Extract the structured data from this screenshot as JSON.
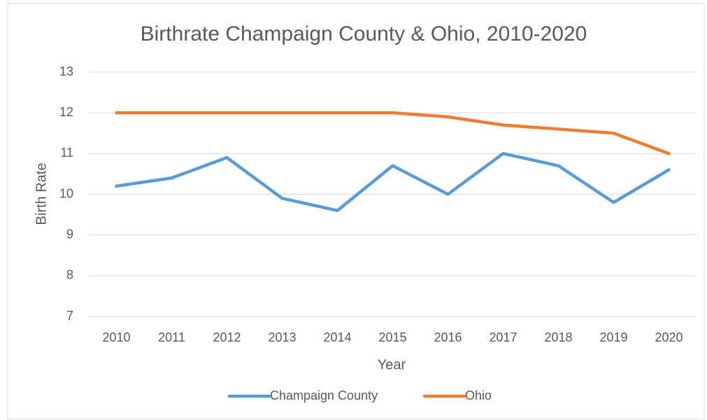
{
  "chart_data": {
    "type": "line",
    "title": "Birthrate Champaign County & Ohio, 2010-2020",
    "x_label": "Year",
    "y_label": "Birth Rate",
    "categories": [
      "2010",
      "2011",
      "2012",
      "2013",
      "2014",
      "2015",
      "2016",
      "2017",
      "2018",
      "2019",
      "2020"
    ],
    "series": [
      {
        "name": "Champaign County",
        "color": "#5b9bd5",
        "values": [
          10.2,
          10.4,
          10.9,
          9.9,
          9.6,
          10.7,
          10.0,
          11.0,
          10.7,
          9.8,
          10.6
        ]
      },
      {
        "name": "Ohio",
        "color": "#ed7d31",
        "values": [
          12,
          12,
          12,
          12,
          12,
          12,
          11.9,
          11.7,
          11.6,
          11.5,
          11.0
        ]
      }
    ],
    "ylim": [
      7,
      13
    ],
    "yticks": [
      7,
      8,
      9,
      10,
      11,
      12,
      13
    ],
    "grid": true,
    "legend": "bottom"
  }
}
